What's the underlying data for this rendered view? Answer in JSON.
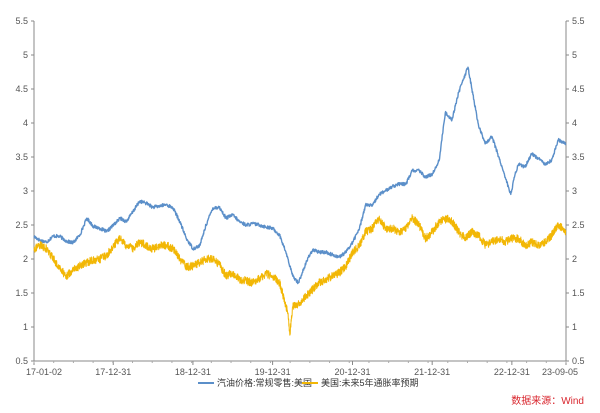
{
  "chart_data": {
    "type": "line",
    "title": "",
    "x_ticks": [
      "17-01-02",
      "17-12-31",
      "18-12-31",
      "19-12-31",
      "20-12-31",
      "21-12-31",
      "22-12-31",
      "23-09-05"
    ],
    "x_start": "2017-01-02",
    "x_end": "2023-09-05",
    "ylim": [
      0.5,
      5.5
    ],
    "y_ticks": [
      "0.5",
      "1",
      "1.5",
      "2",
      "2.5",
      "3",
      "3.5",
      "4",
      "4.5",
      "5",
      "5.5"
    ],
    "y_right_ticks": [
      "0.5",
      "1",
      "1.5",
      "2",
      "2.5",
      "3",
      "3.5",
      "4",
      "4.5",
      "5",
      "5.5"
    ],
    "grid": false,
    "legend_position": "bottom",
    "source": "数据来源：Wind",
    "series": [
      {
        "name": "汽油价格:常规零售:美国",
        "axis": "left",
        "color": "#5b8fc9",
        "points": [
          [
            "2017-01-02",
            2.33
          ],
          [
            "2017-02-01",
            2.27
          ],
          [
            "2017-03-01",
            2.25
          ],
          [
            "2017-04-01",
            2.34
          ],
          [
            "2017-05-01",
            2.33
          ],
          [
            "2017-06-01",
            2.26
          ],
          [
            "2017-07-01",
            2.24
          ],
          [
            "2017-08-01",
            2.36
          ],
          [
            "2017-09-01",
            2.6
          ],
          [
            "2017-10-01",
            2.48
          ],
          [
            "2017-11-01",
            2.45
          ],
          [
            "2017-12-01",
            2.4
          ],
          [
            "2018-01-01",
            2.5
          ],
          [
            "2018-02-01",
            2.6
          ],
          [
            "2018-03-01",
            2.55
          ],
          [
            "2018-04-01",
            2.7
          ],
          [
            "2018-05-01",
            2.85
          ],
          [
            "2018-06-01",
            2.82
          ],
          [
            "2018-07-01",
            2.76
          ],
          [
            "2018-08-01",
            2.78
          ],
          [
            "2018-09-01",
            2.8
          ],
          [
            "2018-10-01",
            2.75
          ],
          [
            "2018-11-01",
            2.55
          ],
          [
            "2018-12-01",
            2.3
          ],
          [
            "2019-01-01",
            2.15
          ],
          [
            "2019-02-01",
            2.2
          ],
          [
            "2019-03-01",
            2.5
          ],
          [
            "2019-04-01",
            2.75
          ],
          [
            "2019-05-01",
            2.76
          ],
          [
            "2019-06-01",
            2.6
          ],
          [
            "2019-07-01",
            2.65
          ],
          [
            "2019-08-01",
            2.55
          ],
          [
            "2019-09-01",
            2.5
          ],
          [
            "2019-10-01",
            2.52
          ],
          [
            "2019-11-01",
            2.5
          ],
          [
            "2019-12-01",
            2.47
          ],
          [
            "2020-01-01",
            2.45
          ],
          [
            "2020-02-01",
            2.35
          ],
          [
            "2020-03-01",
            2.1
          ],
          [
            "2020-04-01",
            1.75
          ],
          [
            "2020-04-27",
            1.65
          ],
          [
            "2020-05-15",
            1.8
          ],
          [
            "2020-06-15",
            2.05
          ],
          [
            "2020-07-01",
            2.13
          ],
          [
            "2020-08-01",
            2.1
          ],
          [
            "2020-09-01",
            2.1
          ],
          [
            "2020-10-01",
            2.06
          ],
          [
            "2020-11-01",
            2.03
          ],
          [
            "2020-12-01",
            2.1
          ],
          [
            "2021-01-01",
            2.25
          ],
          [
            "2021-02-01",
            2.45
          ],
          [
            "2021-03-01",
            2.8
          ],
          [
            "2021-04-01",
            2.78
          ],
          [
            "2021-05-01",
            2.95
          ],
          [
            "2021-06-01",
            3.0
          ],
          [
            "2021-07-01",
            3.07
          ],
          [
            "2021-08-01",
            3.1
          ],
          [
            "2021-09-01",
            3.1
          ],
          [
            "2021-10-01",
            3.3
          ],
          [
            "2021-11-01",
            3.3
          ],
          [
            "2021-12-01",
            3.2
          ],
          [
            "2022-01-01",
            3.25
          ],
          [
            "2022-02-01",
            3.45
          ],
          [
            "2022-03-01",
            4.15
          ],
          [
            "2022-04-01",
            4.05
          ],
          [
            "2022-05-01",
            4.45
          ],
          [
            "2022-06-13",
            4.82
          ],
          [
            "2022-07-01",
            4.5
          ],
          [
            "2022-08-01",
            3.95
          ],
          [
            "2022-09-01",
            3.7
          ],
          [
            "2022-10-01",
            3.8
          ],
          [
            "2022-11-01",
            3.5
          ],
          [
            "2022-12-01",
            3.2
          ],
          [
            "2022-12-26",
            2.95
          ],
          [
            "2023-01-15",
            3.25
          ],
          [
            "2023-02-01",
            3.4
          ],
          [
            "2023-03-01",
            3.35
          ],
          [
            "2023-04-01",
            3.55
          ],
          [
            "2023-05-01",
            3.48
          ],
          [
            "2023-06-01",
            3.4
          ],
          [
            "2023-07-01",
            3.45
          ],
          [
            "2023-08-01",
            3.75
          ],
          [
            "2023-09-05",
            3.7
          ]
        ]
      },
      {
        "name": "美国:未来5年通胀率预期",
        "axis": "right",
        "color": "#f2b705",
        "points": [
          [
            "2017-01-02",
            2.15
          ],
          [
            "2017-02-01",
            2.2
          ],
          [
            "2017-03-01",
            2.15
          ],
          [
            "2017-04-01",
            2.0
          ],
          [
            "2017-05-01",
            1.85
          ],
          [
            "2017-06-01",
            1.75
          ],
          [
            "2017-07-01",
            1.85
          ],
          [
            "2017-08-01",
            1.9
          ],
          [
            "2017-09-01",
            1.95
          ],
          [
            "2017-10-01",
            1.98
          ],
          [
            "2017-11-01",
            2.0
          ],
          [
            "2017-12-01",
            2.05
          ],
          [
            "2018-01-01",
            2.2
          ],
          [
            "2018-02-01",
            2.3
          ],
          [
            "2018-03-01",
            2.2
          ],
          [
            "2018-04-01",
            2.15
          ],
          [
            "2018-05-01",
            2.25
          ],
          [
            "2018-06-01",
            2.2
          ],
          [
            "2018-07-01",
            2.15
          ],
          [
            "2018-08-01",
            2.2
          ],
          [
            "2018-09-01",
            2.2
          ],
          [
            "2018-10-01",
            2.15
          ],
          [
            "2018-11-01",
            2.0
          ],
          [
            "2018-12-01",
            1.88
          ],
          [
            "2019-01-01",
            1.9
          ],
          [
            "2019-02-01",
            1.95
          ],
          [
            "2019-03-01",
            2.0
          ],
          [
            "2019-04-01",
            2.0
          ],
          [
            "2019-05-01",
            1.92
          ],
          [
            "2019-06-01",
            1.75
          ],
          [
            "2019-07-01",
            1.8
          ],
          [
            "2019-08-01",
            1.7
          ],
          [
            "2019-09-01",
            1.68
          ],
          [
            "2019-10-01",
            1.65
          ],
          [
            "2019-11-01",
            1.72
          ],
          [
            "2019-12-01",
            1.78
          ],
          [
            "2020-01-01",
            1.75
          ],
          [
            "2020-02-01",
            1.65
          ],
          [
            "2020-03-10",
            1.2
          ],
          [
            "2020-03-19",
            0.88
          ],
          [
            "2020-04-01",
            1.3
          ],
          [
            "2020-05-01",
            1.35
          ],
          [
            "2020-06-01",
            1.45
          ],
          [
            "2020-07-01",
            1.55
          ],
          [
            "2020-08-01",
            1.65
          ],
          [
            "2020-09-01",
            1.7
          ],
          [
            "2020-10-01",
            1.75
          ],
          [
            "2020-11-01",
            1.8
          ],
          [
            "2020-12-01",
            1.9
          ],
          [
            "2021-01-01",
            2.1
          ],
          [
            "2021-02-01",
            2.2
          ],
          [
            "2021-03-01",
            2.4
          ],
          [
            "2021-04-01",
            2.45
          ],
          [
            "2021-05-01",
            2.6
          ],
          [
            "2021-06-01",
            2.45
          ],
          [
            "2021-07-01",
            2.45
          ],
          [
            "2021-08-01",
            2.4
          ],
          [
            "2021-09-01",
            2.45
          ],
          [
            "2021-10-01",
            2.6
          ],
          [
            "2021-11-01",
            2.5
          ],
          [
            "2021-12-01",
            2.3
          ],
          [
            "2022-01-01",
            2.4
          ],
          [
            "2022-02-01",
            2.55
          ],
          [
            "2022-03-15",
            2.6
          ],
          [
            "2022-04-01",
            2.55
          ],
          [
            "2022-05-01",
            2.4
          ],
          [
            "2022-06-01",
            2.3
          ],
          [
            "2022-07-01",
            2.4
          ],
          [
            "2022-08-01",
            2.35
          ],
          [
            "2022-09-01",
            2.2
          ],
          [
            "2022-10-01",
            2.25
          ],
          [
            "2022-11-01",
            2.3
          ],
          [
            "2022-12-01",
            2.25
          ],
          [
            "2023-01-01",
            2.3
          ],
          [
            "2023-02-01",
            2.3
          ],
          [
            "2023-03-01",
            2.2
          ],
          [
            "2023-04-01",
            2.25
          ],
          [
            "2023-05-01",
            2.2
          ],
          [
            "2023-06-01",
            2.25
          ],
          [
            "2023-07-01",
            2.35
          ],
          [
            "2023-08-01",
            2.5
          ],
          [
            "2023-09-05",
            2.4
          ]
        ]
      }
    ]
  }
}
